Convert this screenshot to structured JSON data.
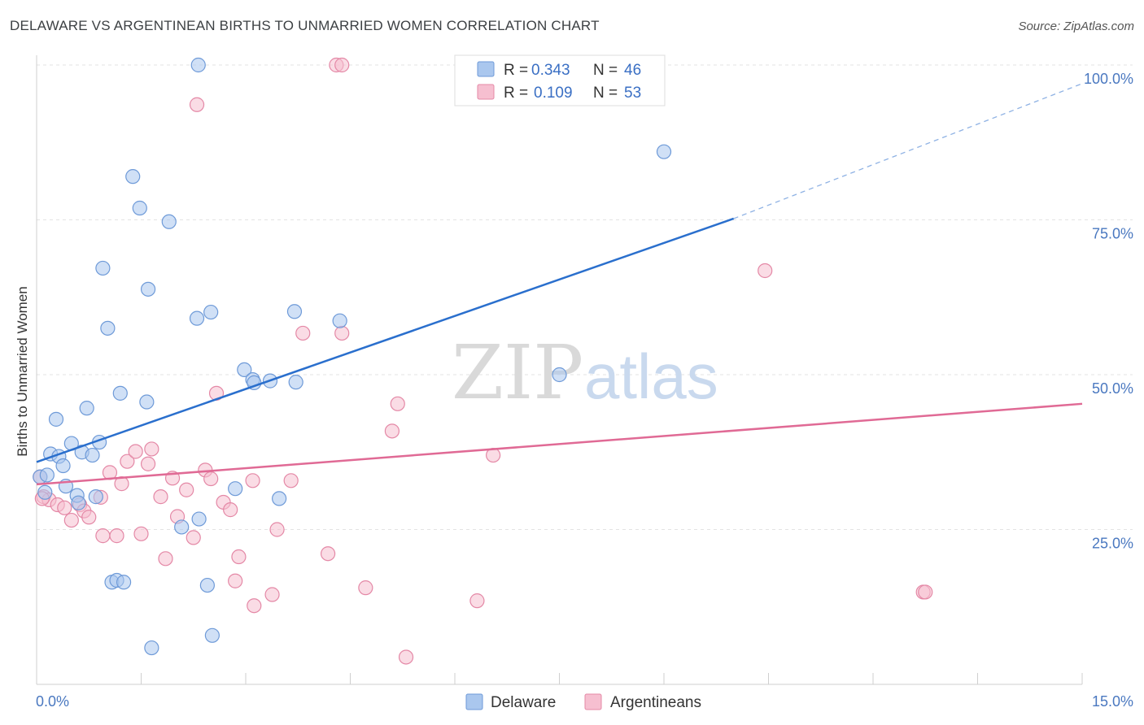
{
  "title": "DELAWARE VS ARGENTINEAN BIRTHS TO UNMARRIED WOMEN CORRELATION CHART",
  "source": "Source: ZipAtlas.com",
  "watermark": {
    "zip": "ZIP",
    "atlas": "atlas"
  },
  "legend_top": [
    {
      "r_label": "R =",
      "r_value": "0.343",
      "n_label": "N =",
      "n_value": "46",
      "color": "#aac7ee",
      "stroke": "#6e9ad8"
    },
    {
      "r_label": "R =",
      "r_value": "0.109",
      "n_label": "N =",
      "n_value": "53",
      "color": "#f6bfd0",
      "stroke": "#e488a6"
    }
  ],
  "legend_bottom": [
    {
      "label": "Delaware",
      "color": "#aac7ee",
      "stroke": "#6e9ad8"
    },
    {
      "label": "Argentineans",
      "color": "#f6bfd0",
      "stroke": "#e488a6"
    }
  ],
  "chart_data": {
    "type": "scatter",
    "title": "DELAWARE VS ARGENTINEAN BIRTHS TO UNMARRIED WOMEN CORRELATION CHART",
    "xlabel": "",
    "ylabel": "Births to Unmarried Women",
    "xlim": [
      0,
      15
    ],
    "ylim": [
      0,
      100
    ],
    "x_tick_labels": [
      "0.0%",
      "15.0%"
    ],
    "y_tick_labels": [
      "25.0%",
      "50.0%",
      "75.0%",
      "100.0%"
    ],
    "y_ticks": [
      25,
      50,
      75,
      100
    ],
    "grid": true,
    "legend_position": "top-center",
    "series": [
      {
        "name": "Delaware",
        "color": "#6e9ad8",
        "fill": "#aac7ee",
        "trend": {
          "x": [
            0,
            10.0
          ],
          "y": [
            35.9,
            75.2
          ],
          "dashed_to": [
            15,
            97.0
          ],
          "color": "#2a6fcd"
        },
        "points": [
          [
            0.05,
            33.5
          ],
          [
            0.12,
            31.0
          ],
          [
            0.15,
            33.8
          ],
          [
            0.2,
            37.2
          ],
          [
            0.28,
            42.8
          ],
          [
            0.32,
            36.8
          ],
          [
            0.38,
            35.3
          ],
          [
            0.42,
            32.0
          ],
          [
            0.5,
            38.9
          ],
          [
            0.58,
            30.5
          ],
          [
            0.6,
            29.3
          ],
          [
            0.65,
            37.5
          ],
          [
            0.72,
            44.6
          ],
          [
            0.8,
            37.0
          ],
          [
            0.85,
            30.3
          ],
          [
            0.9,
            39.1
          ],
          [
            0.95,
            67.2
          ],
          [
            1.02,
            57.5
          ],
          [
            1.08,
            16.5
          ],
          [
            1.15,
            16.8
          ],
          [
            1.2,
            47.0
          ],
          [
            1.25,
            16.5
          ],
          [
            1.38,
            82.0
          ],
          [
            1.48,
            76.9
          ],
          [
            1.6,
            63.8
          ],
          [
            1.58,
            45.6
          ],
          [
            1.65,
            5.9
          ],
          [
            1.9,
            74.7
          ],
          [
            2.08,
            25.4
          ],
          [
            2.3,
            59.1
          ],
          [
            2.32,
            100.0
          ],
          [
            2.33,
            26.7
          ],
          [
            2.45,
            16.0
          ],
          [
            2.5,
            60.1
          ],
          [
            2.52,
            7.9
          ],
          [
            2.85,
            31.6
          ],
          [
            2.98,
            50.8
          ],
          [
            3.1,
            49.2
          ],
          [
            3.12,
            48.7
          ],
          [
            3.35,
            49.0
          ],
          [
            3.48,
            30.0
          ],
          [
            3.7,
            60.2
          ],
          [
            3.72,
            48.8
          ],
          [
            4.35,
            58.7
          ],
          [
            7.5,
            50.0
          ],
          [
            9.0,
            86.0
          ]
        ]
      },
      {
        "name": "Argentineans",
        "color": "#e488a6",
        "fill": "#f6bfd0",
        "trend": {
          "x": [
            0,
            15
          ],
          "y": [
            32.3,
            45.3
          ],
          "color": "#e06a95"
        },
        "points": [
          [
            0.05,
            33.5
          ],
          [
            0.1,
            30.3
          ],
          [
            0.18,
            29.8
          ],
          [
            0.3,
            29.0
          ],
          [
            0.4,
            28.5
          ],
          [
            0.5,
            26.5
          ],
          [
            0.62,
            29.0
          ],
          [
            0.68,
            28.0
          ],
          [
            0.75,
            27.0
          ],
          [
            0.92,
            30.2
          ],
          [
            0.95,
            24.0
          ],
          [
            1.05,
            34.2
          ],
          [
            1.15,
            24.0
          ],
          [
            1.22,
            32.4
          ],
          [
            1.3,
            36.0
          ],
          [
            1.42,
            37.6
          ],
          [
            1.5,
            24.3
          ],
          [
            1.6,
            35.6
          ],
          [
            1.65,
            38.0
          ],
          [
            1.78,
            30.3
          ],
          [
            1.85,
            20.3
          ],
          [
            1.95,
            33.3
          ],
          [
            2.02,
            27.1
          ],
          [
            2.15,
            31.4
          ],
          [
            2.25,
            23.7
          ],
          [
            2.3,
            93.6
          ],
          [
            2.42,
            34.6
          ],
          [
            2.5,
            33.2
          ],
          [
            2.58,
            47.0
          ],
          [
            2.68,
            29.4
          ],
          [
            2.78,
            28.2
          ],
          [
            2.85,
            16.7
          ],
          [
            2.9,
            20.6
          ],
          [
            3.1,
            32.9
          ],
          [
            3.12,
            12.7
          ],
          [
            3.38,
            14.5
          ],
          [
            3.45,
            25.0
          ],
          [
            3.65,
            32.9
          ],
          [
            3.82,
            56.7
          ],
          [
            4.18,
            21.1
          ],
          [
            4.3,
            100.0
          ],
          [
            4.38,
            100.0
          ],
          [
            4.38,
            56.7
          ],
          [
            4.72,
            15.6
          ],
          [
            5.1,
            40.9
          ],
          [
            5.18,
            45.3
          ],
          [
            5.3,
            4.4
          ],
          [
            6.32,
            13.5
          ],
          [
            6.55,
            37.0
          ],
          [
            10.45,
            66.8
          ],
          [
            12.72,
            14.9
          ],
          [
            12.75,
            14.9
          ],
          [
            0.08,
            30.0
          ]
        ]
      }
    ]
  }
}
